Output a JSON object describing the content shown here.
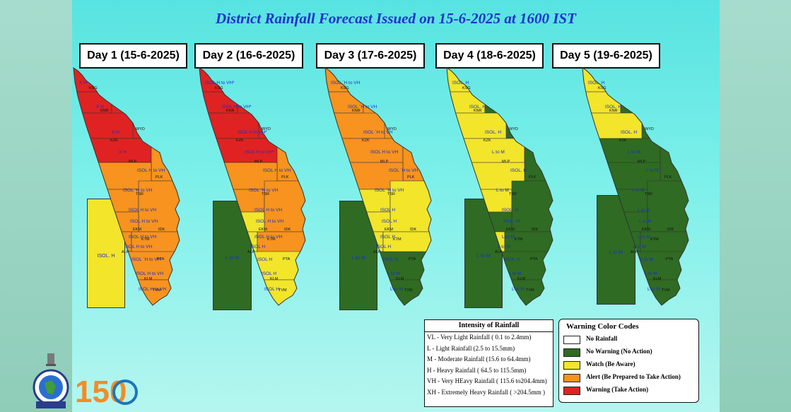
{
  "title": "District Rainfall Forecast Issued on  15-6-2025 at 1600 IST",
  "days": [
    {
      "label": "Day 1 (15-6-2025)"
    },
    {
      "label": "Day 2 (16-6-2025)"
    },
    {
      "label": "Day 3 (17-6-2025)"
    },
    {
      "label": "Day 4 (18-6-2025)"
    },
    {
      "label": "Day 5 (19-6-2025)"
    }
  ],
  "lakshadweep": [
    {
      "text": "ISOL. H",
      "color": "#f2e52a"
    },
    {
      "text": "L to M",
      "color": "#2f6b22"
    },
    {
      "text": "L to M",
      "color": "#2f6b22"
    },
    {
      "text": "L to M",
      "color": "#2f6b22"
    },
    {
      "text": "L to M",
      "color": "#2f6b22"
    }
  ],
  "districts": [
    "KSG",
    "KNR",
    "WYD",
    "KZK",
    "MLP",
    "PLK",
    "TSR",
    "EKM",
    "IDK",
    "KTM",
    "ALP",
    "PTA",
    "KLM",
    "TVM"
  ],
  "district_colors": {
    "day1": [
      "#e02222",
      "#e02222",
      "#e02222",
      "#e02222",
      "#e02222",
      "#f7931e",
      "#f7931e",
      "#f7931e",
      "#f7931e",
      "#f7931e",
      "#f7931e",
      "#f7931e",
      "#f7931e",
      "#f7931e"
    ],
    "day2": [
      "#e02222",
      "#e02222",
      "#e02222",
      "#e02222",
      "#e02222",
      "#f7931e",
      "#f7931e",
      "#f7931e",
      "#f7931e",
      "#f2e52a",
      "#f2e52a",
      "#f7931e",
      "#f2e52a",
      "#f2e52a"
    ],
    "day3": [
      "#f7931e",
      "#f7931e",
      "#f7931e",
      "#f7931e",
      "#f7931e",
      "#f7931e",
      "#f7931e",
      "#f2e52a",
      "#f2e52a",
      "#f2e52a",
      "#f2e52a",
      "#f2e52a",
      "#2f6b22",
      "#2f6b22"
    ],
    "day4": [
      "#f2e52a",
      "#f2e52a",
      "#2f6b22",
      "#f2e52a",
      "#f2e52a",
      "#2f6b22",
      "#f2e52a",
      "#f2e52a",
      "#2f6b22",
      "#2f6b22",
      "#f2e52a",
      "#2f6b22",
      "#2f6b22",
      "#2f6b22"
    ],
    "day5": [
      "#f2e52a",
      "#f2e52a",
      "#2f6b22",
      "#f2e52a",
      "#2f6b22",
      "#2f6b22",
      "#2f6b22",
      "#2f6b22",
      "#2f6b22",
      "#2f6b22",
      "#2f6b22",
      "#2f6b22",
      "#2f6b22",
      "#2f6b22"
    ]
  },
  "district_labels": {
    "day1": [
      "X H",
      "X H",
      "X H",
      "X H",
      "ISOL H to VH",
      "ISOL `H to VH",
      "ISOL H to VH",
      "ISOL H to VH",
      "ISOL H to VH",
      "ISOL H to VH",
      "ISOL `H to VH",
      "ISOL H to VH",
      "ISOL H to VH"
    ],
    "day2": [
      "ISOL H to VH*",
      "ISOL H to VH*",
      "ISOL H to VH*",
      "ISOL H to VH*",
      "ISOL H to VH",
      "ISOL `H to VH",
      "ISOL H to VH",
      "ISOL H to VH",
      "ISOL H to VH",
      "ISOL H",
      "ISOL H",
      "ISOL H",
      "ISOL H"
    ],
    "day3": [
      "ISOL `H to VH",
      "ISOL `H to VH",
      "ISOL `H to VH",
      "ISOL H to VH",
      "ISOL `H to VH",
      "ISOL `H to VH",
      "ISOL H",
      "ISOL H",
      "ISOL H",
      "ISOL H",
      "ISOL H",
      "L to M",
      "L to M"
    ],
    "day4": [
      "ISOL. H",
      "ISOL. H",
      "ISOL. H",
      "L to M",
      "ISOL. H",
      "L to M",
      "ISOL. H",
      "ISOL. H",
      "L to M",
      "L to M",
      "ISOL H",
      "L to M",
      "L to M"
    ],
    "day5": [
      "ISOL. H",
      "ISOL. H",
      "ISOL. H",
      "L to M",
      "L to M",
      "L to M",
      "L to M",
      "L to M",
      "L to M",
      "L to M",
      "L to M",
      "L to M",
      "L to M"
    ]
  },
  "intensity": {
    "title": "Intensity of Rainfall",
    "rows": [
      "VL - Very Light Rainfall ( 0.1 to 2.4mm)",
      "L  - Light Rainfall (2.5 to 15.5mm)",
      "M - Moderate Rainfall (15.6 to 64.4mm)",
      "H - Heavy Rainfall ( 64.5 to 115.5mm)",
      "VH - Very HEavy Rainfall ( 115.6 to204.4mm)",
      "XH - Extremely Heavy Rainfall ( >204.5mm )"
    ]
  },
  "warning": {
    "title": "Warning Color Codes",
    "rows": [
      {
        "label": "No Rainfall",
        "color": "#ffffff"
      },
      {
        "label": "No Warning (No Action)",
        "color": "#2f6b22"
      },
      {
        "label": "Watch (Be Aware)",
        "color": "#f2e52a"
      },
      {
        "label": "Alert (Be Prepared to Take Action)",
        "color": "#f7931e"
      },
      {
        "label": "Warning (Take Action)",
        "color": "#e02222"
      }
    ]
  },
  "logo": {
    "text": "150"
  }
}
